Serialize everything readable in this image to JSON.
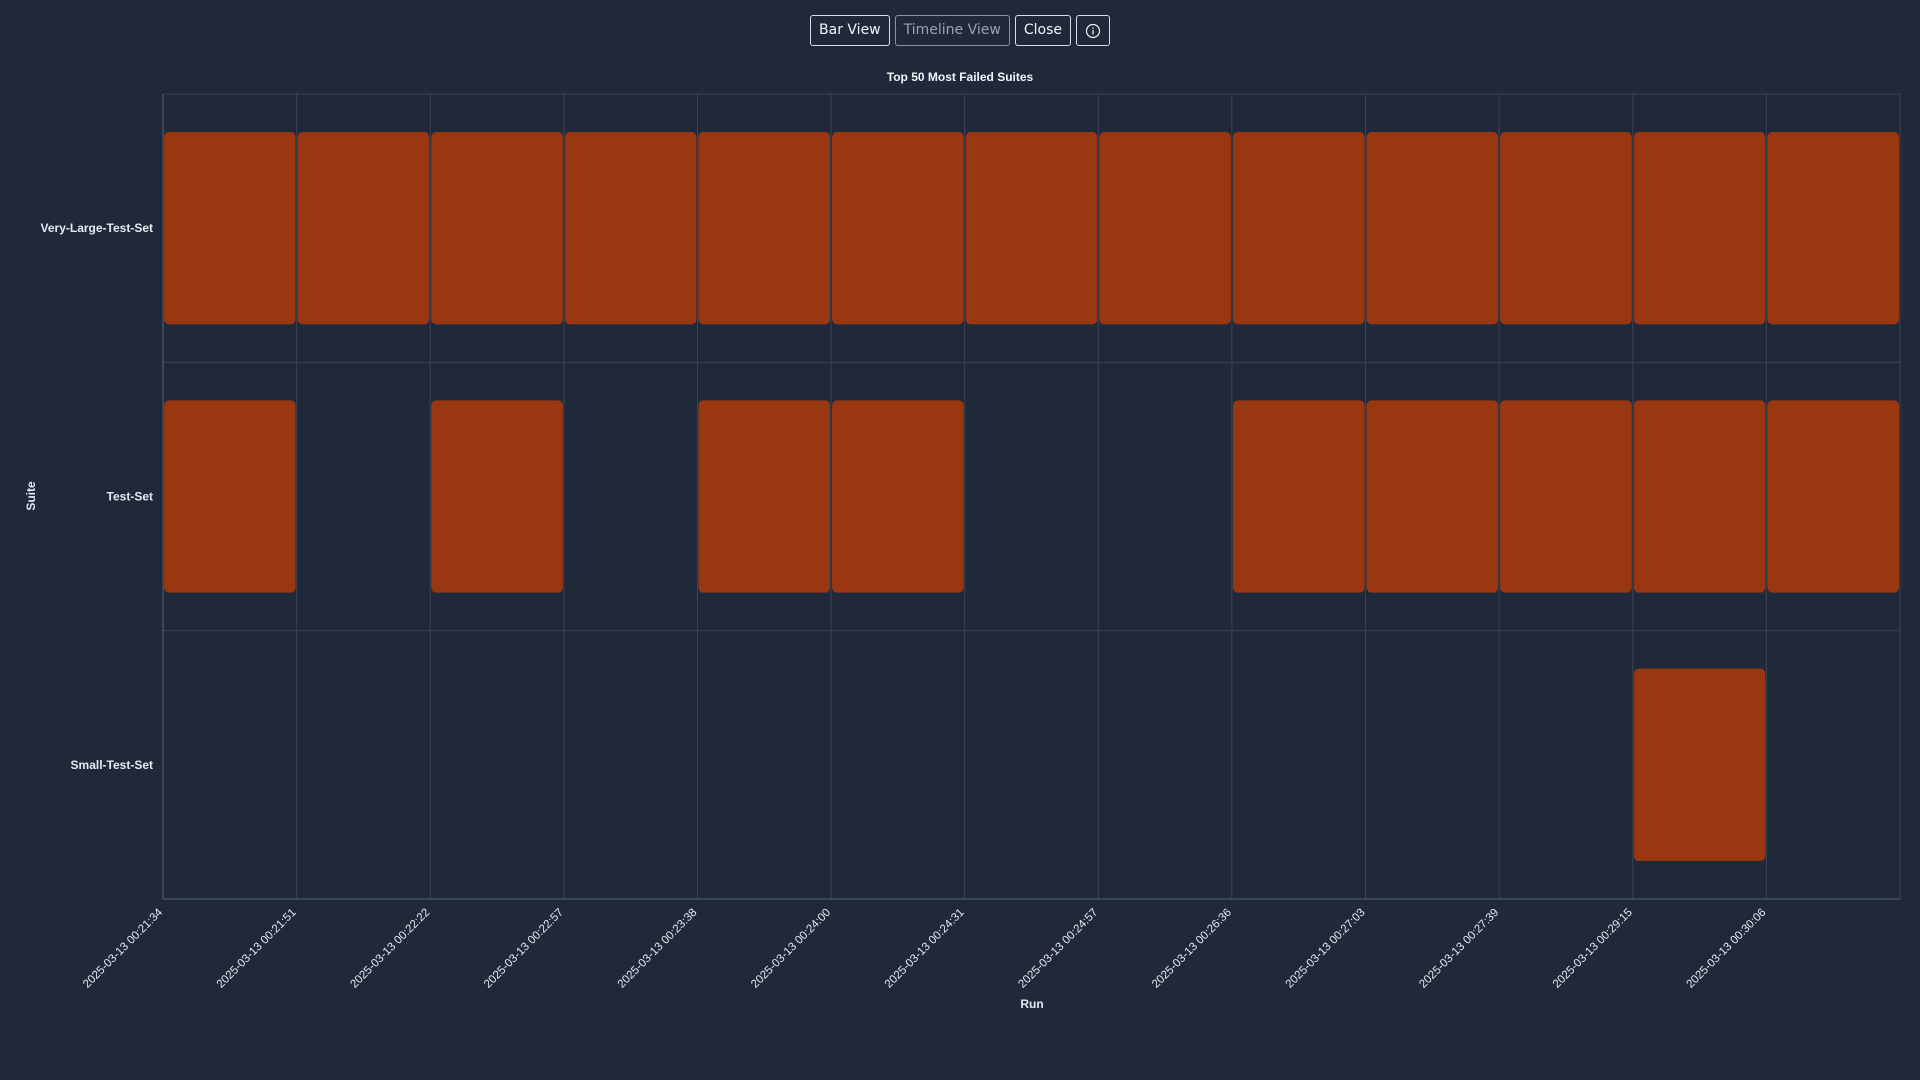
{
  "toolbar": {
    "bar_view_label": "Bar View",
    "timeline_view_label": "Timeline View",
    "close_label": "Close"
  },
  "colors": {
    "background": "#1f293a",
    "bar": "#983710",
    "grid": "#3a4456",
    "text": "#e6e9ef"
  },
  "chart_data": {
    "type": "heatmap",
    "title": "Top 50 Most Failed Suites",
    "xlabel": "Run",
    "ylabel": "Suite",
    "grid": true,
    "legend": "none",
    "x": [
      "2025-03-13 00:21:34",
      "2025-03-13 00:21:51",
      "2025-03-13 00:22:22",
      "2025-03-13 00:22:57",
      "2025-03-13 00:23:38",
      "2025-03-13 00:24:00",
      "2025-03-13 00:24:31",
      "2025-03-13 00:24:57",
      "2025-03-13 00:26:36",
      "2025-03-13 00:27:03",
      "2025-03-13 00:27:39",
      "2025-03-13 00:29:15",
      "2025-03-13 00:30:06"
    ],
    "categories": [
      "Very-Large-Test-Set",
      "Test-Set",
      "Small-Test-Set"
    ],
    "series": [
      {
        "name": "Very-Large-Test-Set",
        "values": [
          1,
          1,
          1,
          1,
          1,
          1,
          1,
          1,
          1,
          1,
          1,
          1,
          1
        ]
      },
      {
        "name": "Test-Set",
        "values": [
          1,
          0,
          1,
          0,
          1,
          1,
          0,
          0,
          1,
          1,
          1,
          1,
          1
        ]
      },
      {
        "name": "Small-Test-Set",
        "values": [
          0,
          0,
          0,
          0,
          0,
          0,
          0,
          0,
          0,
          0,
          0,
          1,
          0
        ]
      }
    ]
  }
}
